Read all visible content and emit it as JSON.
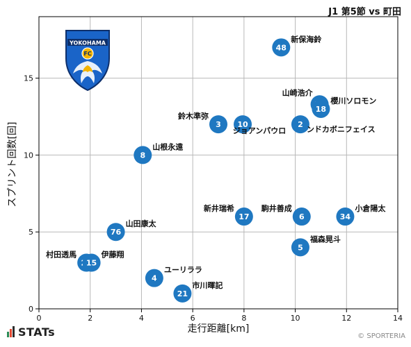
{
  "header": {
    "match_title": "J1 第5節 vs 町田"
  },
  "footer": {
    "brand": "STATs",
    "credit": "© SPORTERIA"
  },
  "logo": {
    "text": "YOKOHAMA",
    "badge": "FC",
    "colors": {
      "primary": "#1a64c8",
      "accent": "#f4b400",
      "dark": "#0d2f6b"
    }
  },
  "colors": {
    "marker": "#1f78c1",
    "marker_text": "#ffffff",
    "grid": "#b8b8b8",
    "axis": "#000000"
  },
  "chart_data": {
    "type": "scatter",
    "title": "",
    "xlabel": "走行距離[km]",
    "ylabel": "スプリント回数[回]",
    "xlim": [
      0,
      14
    ],
    "ylim": [
      0,
      19
    ],
    "xticks": [
      0,
      2,
      4,
      6,
      8,
      10,
      12,
      14
    ],
    "yticks": [
      0,
      5,
      10,
      15
    ],
    "grid": true,
    "points": [
      {
        "number": "48",
        "name": "新保海鈴",
        "x": 9.45,
        "y": 17,
        "label_side": "right"
      },
      {
        "number": "30",
        "name": "山崎浩介",
        "x": 10.95,
        "y": 13.3,
        "label_side": "left-above"
      },
      {
        "number": "18",
        "name": "櫻川ソロモン",
        "x": 11.0,
        "y": 13.0,
        "label_side": "right"
      },
      {
        "number": "3",
        "name": "鈴木準弥",
        "x": 7.0,
        "y": 12.0,
        "label_side": "left"
      },
      {
        "number": "10",
        "name": "ジョアンパウロ",
        "x": 7.95,
        "y": 12.0,
        "label_side": "below"
      },
      {
        "number": "2",
        "name": "ンドカボニフェイス",
        "x": 10.2,
        "y": 12.0,
        "label_side": "right-below"
      },
      {
        "number": "8",
        "name": "山根永遠",
        "x": 4.05,
        "y": 10.0,
        "label_side": "right"
      },
      {
        "number": "17",
        "name": "新井瑞希",
        "x": 8.0,
        "y": 6.0,
        "label_side": "left"
      },
      {
        "number": "6",
        "name": "駒井善成",
        "x": 10.25,
        "y": 6.0,
        "label_side": "left"
      },
      {
        "number": "34",
        "name": "小倉陽太",
        "x": 11.95,
        "y": 6.0,
        "label_side": "right"
      },
      {
        "number": "76",
        "name": "山田康太",
        "x": 3.0,
        "y": 5.0,
        "label_side": "right"
      },
      {
        "number": "5",
        "name": "福森晃斗",
        "x": 10.2,
        "y": 4.0,
        "label_side": "right"
      },
      {
        "number": "20",
        "name": "村田透馬",
        "x": 1.85,
        "y": 3.0,
        "label_side": "left"
      },
      {
        "number": "15",
        "name": "伊藤翔",
        "x": 2.05,
        "y": 3.0,
        "label_side": "right"
      },
      {
        "number": "4",
        "name": "ユーリララ",
        "x": 4.5,
        "y": 2.0,
        "label_side": "right"
      },
      {
        "number": "21",
        "name": "市川暉記",
        "x": 5.6,
        "y": 1.0,
        "label_side": "right"
      }
    ]
  }
}
